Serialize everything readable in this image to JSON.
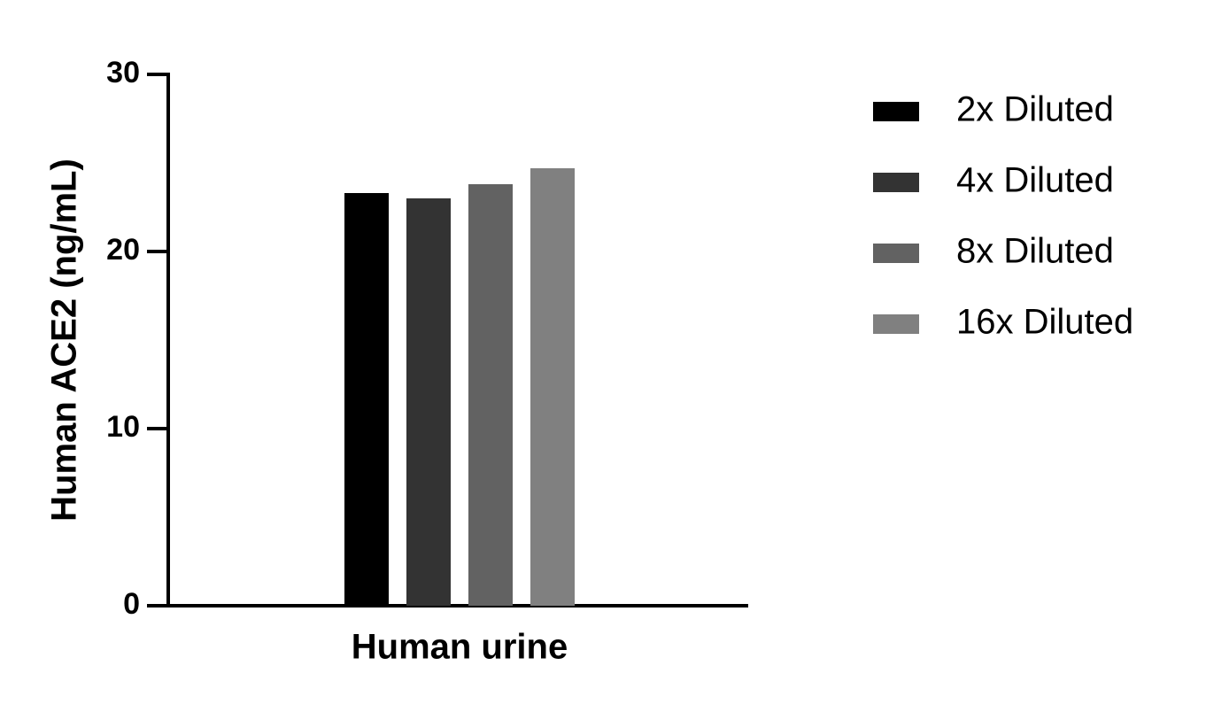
{
  "chart_data": {
    "type": "bar",
    "y_label": "Human ACE2 (ng/mL)",
    "categories": [
      "Human urine"
    ],
    "series": [
      {
        "name": "2x Diluted",
        "color": "#000000",
        "values": [
          23.3
        ]
      },
      {
        "name": "4x Diluted",
        "color": "#333333",
        "values": [
          23.0
        ]
      },
      {
        "name": "8x Diluted",
        "color": "#626262",
        "values": [
          23.8
        ]
      },
      {
        "name": "16x Diluted",
        "color": "#808080",
        "values": [
          24.7
        ]
      }
    ],
    "ylim": [
      0,
      30
    ],
    "yticks": [
      0,
      10,
      20,
      30
    ]
  }
}
